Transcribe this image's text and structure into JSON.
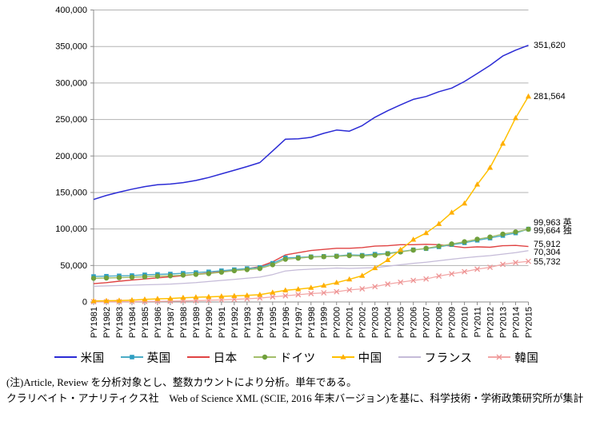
{
  "chart_data": {
    "type": "line",
    "title": "",
    "xlabel": "",
    "ylabel": "",
    "ylim": [
      0,
      400000
    ],
    "y_ticks": [
      0,
      50000,
      100000,
      150000,
      200000,
      250000,
      300000,
      350000,
      400000
    ],
    "grid": true,
    "legend_position": "bottom",
    "categories": [
      "PY1981",
      "PY1982",
      "PY1983",
      "PY1984",
      "PY1985",
      "PY1986",
      "PY1987",
      "PY1988",
      "PY1989",
      "PY1990",
      "PY1991",
      "PY1992",
      "PY1993",
      "PY1994",
      "PY1995",
      "PY1996",
      "PY1997",
      "PY1998",
      "PY1999",
      "PY2000",
      "PY2001",
      "PY2002",
      "PY2003",
      "PY2004",
      "PY2005",
      "PY2006",
      "PY2007",
      "PY2008",
      "PY2009",
      "PY2010",
      "PY2011",
      "PY2012",
      "PY2013",
      "PY2014",
      "PY2015"
    ],
    "series": [
      {
        "key": "usa",
        "name": "米国",
        "color": "#2B2BD5",
        "marker": "none",
        "end_label": "351,620",
        "values": [
          140400,
          146000,
          150500,
          154500,
          158000,
          160500,
          161500,
          163500,
          166500,
          170500,
          175500,
          180500,
          185500,
          191000,
          207000,
          223000,
          223500,
          225500,
          231000,
          235500,
          234000,
          241500,
          253000,
          262000,
          270000,
          277500,
          281500,
          288000,
          293000,
          302000,
          313000,
          324000,
          337000,
          345000,
          351620
        ]
      },
      {
        "key": "uk",
        "name": "英国",
        "color": "#4BACC6",
        "marker": "square",
        "marker_color": "#2E9EC2",
        "end_label": "99,963 英",
        "values": [
          34900,
          35300,
          35800,
          36200,
          37200,
          37800,
          38300,
          39300,
          40300,
          41300,
          42800,
          44300,
          45800,
          47300,
          53000,
          60500,
          61000,
          62000,
          62500,
          63000,
          64500,
          64000,
          65500,
          66500,
          69000,
          71500,
          73000,
          75500,
          78500,
          81000,
          84500,
          87500,
          91000,
          94500,
          99963
        ]
      },
      {
        "key": "japan",
        "name": "日本",
        "color": "#E04343",
        "marker": "none",
        "end_label": "75,912",
        "values": [
          25100,
          26500,
          28500,
          30000,
          31500,
          33000,
          34500,
          36000,
          38000,
          39500,
          41500,
          43500,
          45500,
          48500,
          55000,
          64500,
          67500,
          70500,
          72000,
          73500,
          73500,
          74500,
          76500,
          77000,
          78500,
          78500,
          79000,
          78500,
          76500,
          74500,
          75500,
          75000,
          77000,
          77500,
          75912
        ]
      },
      {
        "key": "germany",
        "name": "ドイツ",
        "color": "#A3BE6A",
        "marker": "circle",
        "marker_color": "#70A03C",
        "end_label": "99,664 独",
        "values": [
          32400,
          32800,
          33300,
          33800,
          34500,
          35300,
          35800,
          36800,
          37800,
          38800,
          40800,
          42800,
          44300,
          45800,
          51000,
          58500,
          60000,
          61500,
          62000,
          62500,
          63500,
          63000,
          64000,
          66000,
          68500,
          71000,
          73500,
          76500,
          79500,
          82500,
          86000,
          89000,
          93000,
          96000,
          99664
        ]
      },
      {
        "key": "china",
        "name": "中国",
        "color": "#FFC000",
        "marker": "triangle",
        "marker_color": "#FFAE00",
        "end_label": "281,564",
        "values": [
          1300,
          1600,
          2000,
          2500,
          3500,
          4300,
          4800,
          5800,
          6500,
          7000,
          7700,
          8300,
          9000,
          10000,
          13000,
          16000,
          17500,
          19500,
          22500,
          26500,
          31000,
          36000,
          46500,
          57500,
          71500,
          85500,
          94500,
          107000,
          122500,
          135000,
          161000,
          184000,
          217000,
          252000,
          281564
        ]
      },
      {
        "key": "france",
        "name": "フランス",
        "color": "#C5BBD8",
        "marker": "none",
        "end_label": "70,304",
        "values": [
          21500,
          22000,
          22500,
          23000,
          23500,
          24000,
          24500,
          25500,
          26500,
          28000,
          29500,
          31000,
          32500,
          34000,
          37500,
          42500,
          44000,
          45000,
          45500,
          46500,
          46000,
          46500,
          47000,
          49000,
          51000,
          53000,
          54500,
          56500,
          58500,
          60500,
          62000,
          63500,
          65500,
          67500,
          70304
        ]
      },
      {
        "key": "korea",
        "name": "韓国",
        "color": "#F2A6A6",
        "marker": "x",
        "marker_color": "#EE9393",
        "end_label": "55,732",
        "values": [
          250,
          300,
          400,
          500,
          700,
          900,
          1100,
          1400,
          1800,
          2300,
          2900,
          3600,
          4400,
          5400,
          7000,
          8500,
          10000,
          11500,
          12500,
          14000,
          16500,
          18000,
          21000,
          24500,
          27000,
          29500,
          31500,
          35500,
          38500,
          41500,
          45000,
          47500,
          51500,
          54000,
          55732
        ]
      }
    ]
  },
  "notes": {
    "line1": "(注)Article, Review を分析対象とし、整数カウントにより分析。単年である。",
    "line2": "クラリベイト・アナリティクス社　Web of Science XML (SCIE, 2016 年末バージョン)を基に、科学技術・学術政策研究所が集計"
  }
}
